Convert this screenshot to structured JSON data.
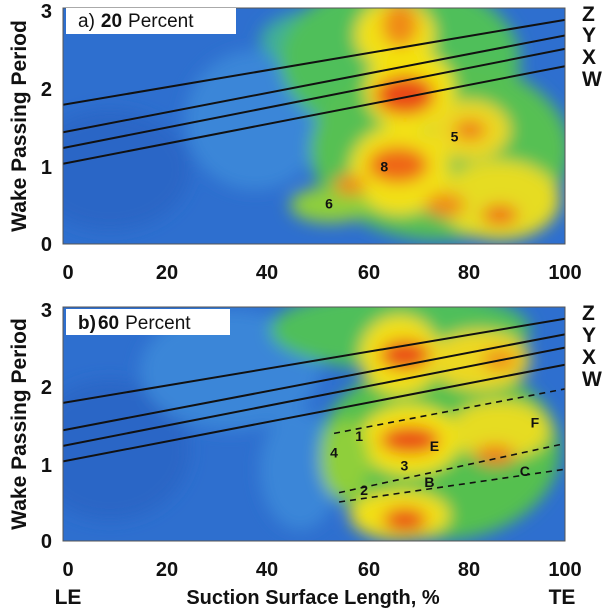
{
  "chart_data": [
    {
      "type": "heatmap",
      "panel": "a",
      "title_prefix": "a)",
      "title_value": "20",
      "title_suffix": "Percent",
      "xlim": [
        0,
        100
      ],
      "ylim": [
        0,
        3
      ],
      "xticks": [
        "0",
        "20",
        "40",
        "60",
        "80",
        "100"
      ],
      "yticks": [
        "0",
        "1",
        "2",
        "3"
      ],
      "ylabel": "Wake Passing Period",
      "colors": {
        "low": "#2f6fcc",
        "mid": "#3fbf6a",
        "high": "#f2e60a",
        "peak": "#e83a10"
      },
      "wake_lines": [
        {
          "name": "Z",
          "x": [
            0,
            100
          ],
          "y": [
            1.77,
            2.85
          ]
        },
        {
          "name": "Y",
          "x": [
            0,
            100
          ],
          "y": [
            1.42,
            2.65
          ]
        },
        {
          "name": "X",
          "x": [
            0,
            100
          ],
          "y": [
            1.22,
            2.48
          ]
        },
        {
          "name": "W",
          "x": [
            0,
            100
          ],
          "y": [
            1.02,
            2.26
          ]
        }
      ],
      "dashed_lines": [],
      "regions": [
        {
          "label": "5",
          "x": 78,
          "y": 1.35
        },
        {
          "label": "8",
          "x": 64,
          "y": 0.97
        },
        {
          "label": "6",
          "x": 53,
          "y": 0.5
        }
      ]
    },
    {
      "type": "heatmap",
      "panel": "b",
      "title_prefix": "b)",
      "title_value": "60",
      "title_suffix": "Percent",
      "xlim": [
        0,
        100
      ],
      "ylim": [
        0,
        3
      ],
      "xticks": [
        "0",
        "20",
        "40",
        "60",
        "80",
        "100"
      ],
      "yticks": [
        "0",
        "1",
        "2",
        "3"
      ],
      "ylabel": "Wake Passing Period",
      "colors": {
        "low": "#2f6fcc",
        "mid": "#3fbf6a",
        "high": "#f2e60a",
        "peak": "#e83a10"
      },
      "wake_lines": [
        {
          "name": "Z",
          "x": [
            0,
            100
          ],
          "y": [
            1.77,
            2.85
          ]
        },
        {
          "name": "Y",
          "x": [
            0,
            100
          ],
          "y": [
            1.42,
            2.65
          ]
        },
        {
          "name": "X",
          "x": [
            0,
            100
          ],
          "y": [
            1.22,
            2.48
          ]
        },
        {
          "name": "W",
          "x": [
            0,
            100
          ],
          "y": [
            1.02,
            2.26
          ]
        }
      ],
      "dashed_lines": [
        {
          "x": [
            54,
            100
          ],
          "y": [
            1.38,
            1.95
          ]
        },
        {
          "x": [
            55,
            100
          ],
          "y": [
            0.62,
            1.25
          ]
        },
        {
          "x": [
            55,
            100
          ],
          "y": [
            0.5,
            0.92
          ]
        }
      ],
      "regions": [
        {
          "label": "1",
          "x": 59,
          "y": 1.33
        },
        {
          "label": "4",
          "x": 54,
          "y": 1.12
        },
        {
          "label": "E",
          "x": 74,
          "y": 1.2
        },
        {
          "label": "F",
          "x": 94,
          "y": 1.5
        },
        {
          "label": "3",
          "x": 68,
          "y": 0.95
        },
        {
          "label": "B",
          "x": 73,
          "y": 0.74
        },
        {
          "label": "C",
          "x": 92,
          "y": 0.88
        },
        {
          "label": "2",
          "x": 60,
          "y": 0.64
        }
      ]
    }
  ],
  "xlabel": "Suction Surface Length, %",
  "edge_labels": {
    "left": "LE",
    "right": "TE"
  }
}
